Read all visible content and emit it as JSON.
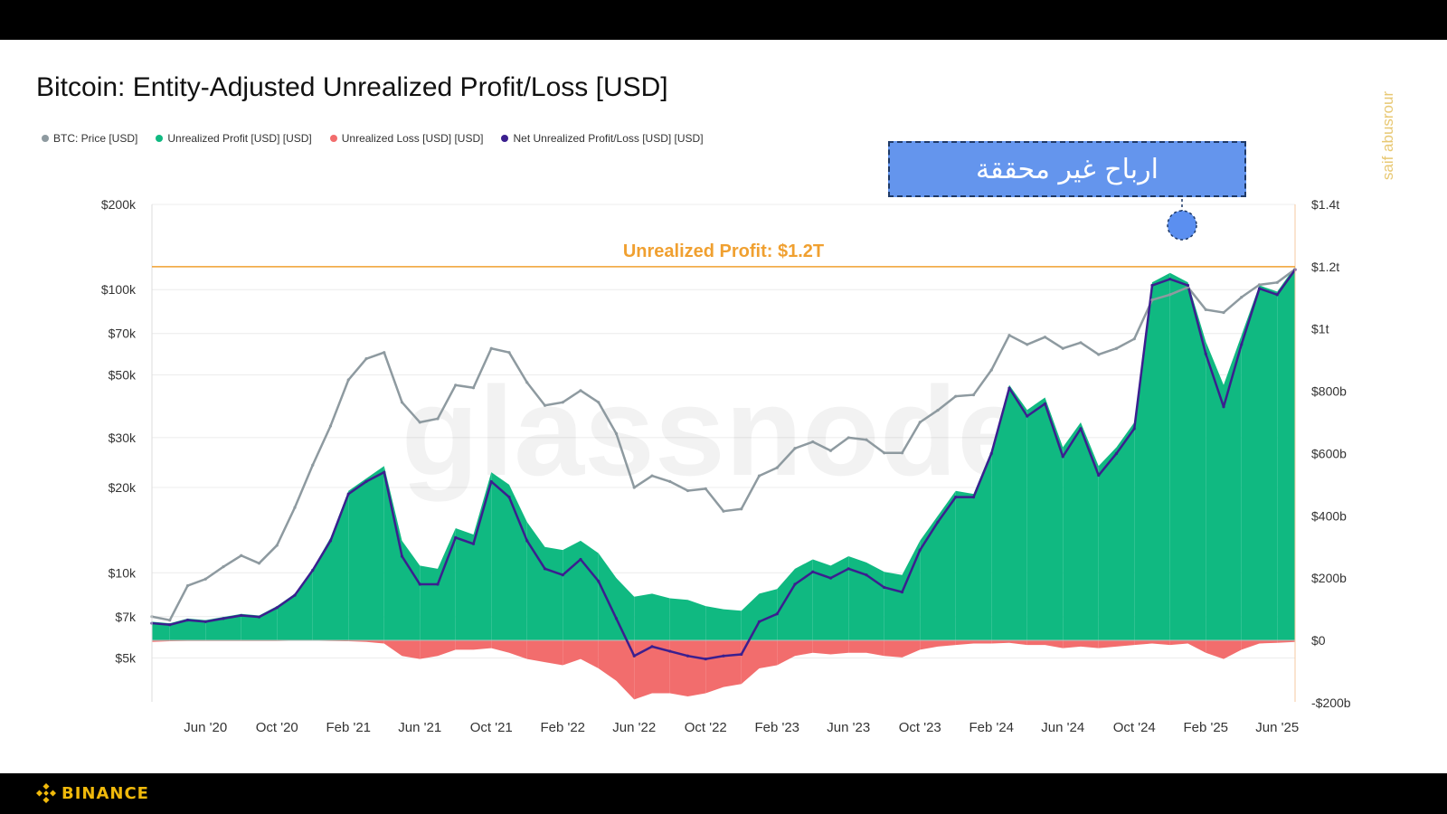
{
  "header": {
    "title": "Bitcoin: Entity-Adjusted Unrealized Profit/Loss [USD]"
  },
  "side_watermark": "saif abusrour",
  "brand": {
    "name": "BINANCE",
    "color": "#f0b90b",
    "icon": "binance-diamond-icon"
  },
  "annotation": {
    "callout_text": "ارباح غير محققة",
    "threshold_label": "Unrealized Profit: $1.2T",
    "threshold_color": "#f0a030",
    "highlight_color": "#5b8ff0"
  },
  "chart_data": {
    "type": "area",
    "title": "Bitcoin: Entity-Adjusted Unrealized Profit/Loss [USD]",
    "watermark": "glassnode",
    "legend": [
      {
        "label": "BTC: Price [USD]",
        "color": "#8e9aa0"
      },
      {
        "label": "Unrealized Profit [USD] [USD]",
        "color": "#10b981"
      },
      {
        "label": "Unrealized Loss [USD] [USD]",
        "color": "#f26d6d"
      },
      {
        "label": "Net Unrealized Profit/Loss [USD] [USD]",
        "color": "#3b1f8f"
      }
    ],
    "x_ticks": [
      "Jun '20",
      "Oct '20",
      "Feb '21",
      "Jun '21",
      "Oct '21",
      "Feb '22",
      "Jun '22",
      "Oct '22",
      "Feb '23",
      "Jun '23",
      "Oct '23",
      "Feb '24",
      "Jun '24",
      "Oct '24",
      "Feb '25",
      "Jun '25"
    ],
    "x_range": [
      "2020-03",
      "2025-07"
    ],
    "y_left": {
      "scale": "log",
      "ticks": [
        "$5k",
        "$7k",
        "$10k",
        "$20k",
        "$30k",
        "$50k",
        "$70k",
        "$100k",
        "$200k"
      ],
      "tick_values": [
        5000,
        7000,
        10000,
        20000,
        30000,
        50000,
        70000,
        100000,
        200000
      ]
    },
    "y_right": {
      "scale": "linear",
      "ticks": [
        "-$200b",
        "$0",
        "$200b",
        "$400b",
        "$600b",
        "$800b",
        "$1t",
        "$1.2t",
        "$1.4t"
      ],
      "tick_values": [
        -200,
        0,
        200,
        400,
        600,
        800,
        1000,
        1200,
        1400
      ],
      "unit": "billion USD"
    },
    "threshold_line": {
      "value": 1200,
      "axis": "right",
      "label": "Unrealized Profit: $1.2T"
    },
    "dates": [
      "2020-03",
      "2020-04",
      "2020-05",
      "2020-06",
      "2020-07",
      "2020-08",
      "2020-09",
      "2020-10",
      "2020-11",
      "2020-12",
      "2021-01",
      "2021-02",
      "2021-03",
      "2021-04",
      "2021-05",
      "2021-06",
      "2021-07",
      "2021-08",
      "2021-09",
      "2021-10",
      "2021-11",
      "2021-12",
      "2022-01",
      "2022-02",
      "2022-03",
      "2022-04",
      "2022-05",
      "2022-06",
      "2022-07",
      "2022-08",
      "2022-09",
      "2022-10",
      "2022-11",
      "2022-12",
      "2023-01",
      "2023-02",
      "2023-03",
      "2023-04",
      "2023-05",
      "2023-06",
      "2023-07",
      "2023-08",
      "2023-09",
      "2023-10",
      "2023-11",
      "2023-12",
      "2024-01",
      "2024-02",
      "2024-03",
      "2024-04",
      "2024-05",
      "2024-06",
      "2024-07",
      "2024-08",
      "2024-09",
      "2024-10",
      "2024-11",
      "2024-12",
      "2025-01",
      "2025-02",
      "2025-03",
      "2025-04",
      "2025-05",
      "2025-06",
      "2025-07"
    ],
    "series": [
      {
        "name": "BTC: Price [USD]",
        "axis": "left",
        "values": [
          7000,
          6800,
          9000,
          9500,
          10500,
          11500,
          10800,
          12500,
          17000,
          24000,
          33000,
          48000,
          57000,
          60000,
          40000,
          34000,
          35000,
          46000,
          45000,
          62000,
          60000,
          47000,
          39000,
          40000,
          44000,
          40000,
          31000,
          20000,
          22000,
          21000,
          19500,
          19800,
          16500,
          16800,
          22000,
          23500,
          27500,
          29000,
          27000,
          30000,
          29500,
          26500,
          26500,
          34000,
          37500,
          42000,
          42500,
          52000,
          69000,
          64000,
          68000,
          62000,
          65000,
          59000,
          62000,
          67000,
          92000,
          96000,
          102000,
          85000,
          83000,
          94000,
          104000,
          106000,
          118000
        ]
      },
      {
        "name": "Unrealized Profit [USD] [USD]",
        "axis": "right",
        "values": [
          60,
          55,
          70,
          65,
          75,
          85,
          80,
          110,
          150,
          230,
          330,
          480,
          520,
          560,
          320,
          240,
          230,
          360,
          340,
          540,
          500,
          380,
          300,
          290,
          320,
          280,
          200,
          140,
          150,
          135,
          130,
          110,
          100,
          95,
          150,
          165,
          230,
          260,
          240,
          270,
          250,
          220,
          210,
          320,
          400,
          480,
          470,
          610,
          820,
          740,
          780,
          620,
          700,
          560,
          620,
          700,
          1150,
          1180,
          1150,
          960,
          820,
          980,
          1140,
          1120,
          1200
        ]
      },
      {
        "name": "Unrealized Loss [USD] [USD]",
        "axis": "right",
        "values": [
          -5,
          -3,
          -2,
          -2,
          -2,
          -2,
          -2,
          -2,
          -1,
          -1,
          -2,
          -3,
          -5,
          -10,
          -50,
          -60,
          -50,
          -30,
          -30,
          -25,
          -40,
          -60,
          -70,
          -80,
          -60,
          -90,
          -130,
          -190,
          -170,
          -170,
          -180,
          -170,
          -150,
          -140,
          -90,
          -80,
          -50,
          -40,
          -45,
          -40,
          -40,
          -50,
          -55,
          -30,
          -20,
          -15,
          -10,
          -10,
          -8,
          -15,
          -15,
          -25,
          -20,
          -25,
          -20,
          -15,
          -10,
          -15,
          -10,
          -40,
          -60,
          -30,
          -10,
          -8,
          -5
        ]
      },
      {
        "name": "Net Unrealized Profit/Loss [USD] [USD]",
        "axis": "right",
        "values": [
          55,
          50,
          65,
          60,
          70,
          80,
          75,
          105,
          145,
          225,
          320,
          470,
          510,
          540,
          270,
          180,
          180,
          330,
          310,
          510,
          460,
          320,
          230,
          210,
          260,
          190,
          70,
          -50,
          -20,
          -35,
          -50,
          -60,
          -50,
          -45,
          60,
          85,
          180,
          220,
          200,
          230,
          210,
          170,
          155,
          290,
          380,
          460,
          460,
          600,
          810,
          720,
          760,
          590,
          680,
          530,
          600,
          680,
          1140,
          1160,
          1140,
          920,
          750,
          950,
          1130,
          1110,
          1190
        ]
      }
    ]
  }
}
